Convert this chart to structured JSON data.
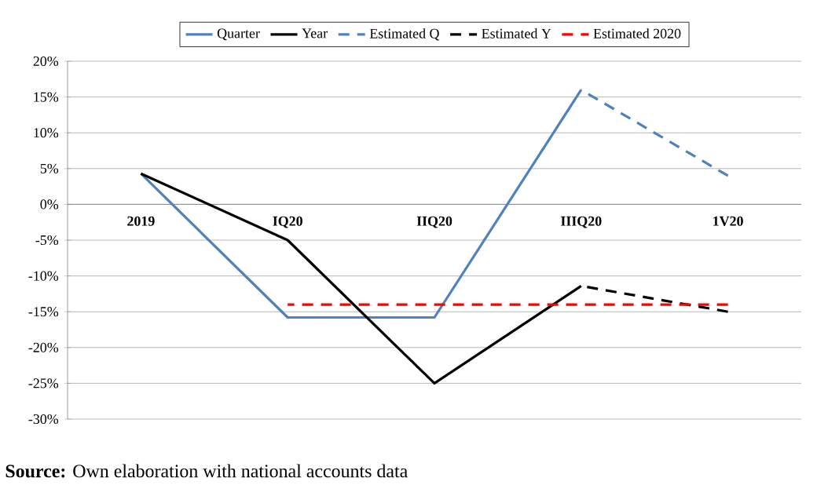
{
  "chart_data": {
    "type": "line",
    "categories": [
      "2019",
      "IQ20",
      "IIQ20",
      "IIIQ20",
      "1V20"
    ],
    "series": [
      {
        "name": "Quarter",
        "color": "#4f81bd",
        "line_style": "solid",
        "values": [
          4.3,
          -15.8,
          -15.8,
          16.0,
          null
        ]
      },
      {
        "name": "Year",
        "color": "#000000",
        "line_style": "solid",
        "values": [
          4.3,
          -5,
          -25,
          -11.4,
          null
        ]
      },
      {
        "name": "Estimated Q",
        "color": "#4f81bd",
        "line_style": "dashed",
        "values": [
          null,
          null,
          null,
          16.0,
          4.0
        ]
      },
      {
        "name": "Estimated Y",
        "color": "#000000",
        "line_style": "dashed",
        "values": [
          null,
          null,
          null,
          -11.4,
          -15
        ]
      },
      {
        "name": "Estimated 2020",
        "color": "#ff0000",
        "line_style": "dashed",
        "values": [
          null,
          -14,
          -14,
          -14,
          -14
        ]
      }
    ],
    "ylim": [
      -30,
      20
    ],
    "yticks": [
      {
        "value": -30,
        "label": "-30%"
      },
      {
        "value": -25,
        "label": "-25%"
      },
      {
        "value": -20,
        "label": "-20%"
      },
      {
        "value": -15,
        "label": "-15%"
      },
      {
        "value": -10,
        "label": "-10%"
      },
      {
        "value": -5,
        "label": "-5%"
      },
      {
        "value": 0,
        "label": "0%"
      },
      {
        "value": 5,
        "label": "5%"
      },
      {
        "value": 10,
        "label": "10%"
      },
      {
        "value": 15,
        "label": "15%"
      },
      {
        "value": 20,
        "label": "20%"
      }
    ],
    "grid": "y",
    "legend": "top",
    "marker": "none",
    "annotations": [
      "**Source:** Own elaboration with national accounts data"
    ]
  }
}
